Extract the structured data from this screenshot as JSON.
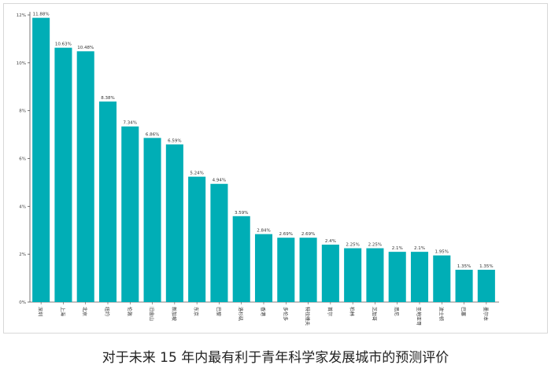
{
  "chart_data": {
    "type": "bar",
    "title": "对于未来 15 年内最有利于青年科学家发展城市的预测评价",
    "xlabel": "",
    "ylabel": "",
    "ylim": [
      0,
      12
    ],
    "yticks": [
      "0%",
      "2%",
      "4%",
      "6%",
      "8%",
      "10%",
      "12%"
    ],
    "grid": false,
    "categories": [
      "深圳",
      "上海",
      "北京",
      "纽约",
      "伦敦",
      "旧金山",
      "新加坡",
      "东京",
      "巴黎",
      "洛杉矶",
      "香港",
      "多伦多",
      "特拉维夫",
      "首尔",
      "柏林",
      "芝加哥",
      "悉尼",
      "圣地亚哥",
      "波士顿",
      "巴塞",
      "墨尔本"
    ],
    "values": [
      11.88,
      10.63,
      10.48,
      8.38,
      7.34,
      6.86,
      6.59,
      5.24,
      4.94,
      3.59,
      2.84,
      2.69,
      2.69,
      2.4,
      2.25,
      2.25,
      2.1,
      2.1,
      1.95,
      1.35,
      1.35
    ],
    "data_labels": [
      "11.88%",
      "10.63%",
      "10.48%",
      "8.38%",
      "7.34%",
      "6.86%",
      "6.59%",
      "5.24%",
      "4.94%",
      "3.59%",
      "2.84%",
      "2.69%",
      "2.69%",
      "2.4%",
      "2.25%",
      "2.25%",
      "2.1%",
      "2.1%",
      "1.95%",
      "1.35%",
      "1.35%"
    ],
    "colors": {
      "bar": "#00aeb6",
      "axis": "#555555"
    }
  }
}
